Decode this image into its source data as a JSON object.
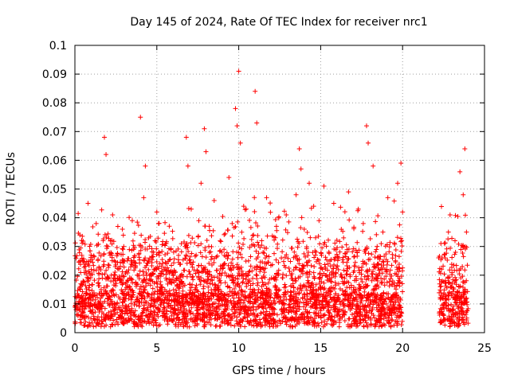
{
  "chart_data": {
    "type": "scatter",
    "title": "Day 145 of 2024, Rate Of TEC Index for receiver nrc1",
    "xlabel": "GPS time / hours",
    "ylabel": "ROTI / TECUs",
    "xlim": [
      0,
      25
    ],
    "ylim": [
      0,
      0.1
    ],
    "xticks": [
      0,
      5,
      10,
      15,
      20,
      25
    ],
    "xtick_labels": [
      "0",
      "5",
      "10",
      "15",
      "20",
      "25"
    ],
    "yticks": [
      0,
      0.01,
      0.02,
      0.03,
      0.04,
      0.05,
      0.06,
      0.07,
      0.08,
      0.09,
      0.1
    ],
    "ytick_labels": [
      "0",
      "0.01",
      "0.02",
      "0.03",
      "0.04",
      "0.05",
      "0.06",
      "0.07",
      "0.08",
      "0.09",
      "0.1"
    ],
    "grid": true,
    "marker": "plus",
    "color": "#ff0000",
    "series": [
      {
        "x": [
          0.1,
          0.3,
          0.5,
          0.8,
          1.0,
          1.3,
          1.6,
          1.8,
          1.9,
          2.0,
          2.3,
          2.6,
          2.9,
          3.2,
          3.5,
          3.8,
          4.0,
          4.2,
          4.3,
          4.5,
          4.8,
          5.0,
          5.3,
          5.6,
          5.9,
          6.2,
          6.5,
          6.8,
          6.9,
          7.1,
          7.4,
          7.7,
          7.9,
          8.0,
          8.2,
          8.5,
          8.8,
          9.1,
          9.4,
          9.6,
          9.8,
          9.9,
          10.0,
          10.1,
          10.3,
          10.6,
          10.9,
          11.0,
          11.1,
          11.4,
          11.7,
          12.0,
          12.3,
          12.6,
          12.9,
          13.2,
          13.5,
          13.7,
          13.8,
          14.0,
          14.3,
          14.6,
          14.9,
          15.2,
          15.5,
          15.8,
          16.1,
          16.4,
          16.7,
          17.0,
          17.3,
          17.6,
          17.8,
          17.9,
          18.2,
          18.5,
          18.8,
          19.1,
          19.4,
          19.7,
          19.9,
          20.0,
          22.3,
          22.6,
          22.9,
          23.2,
          23.5,
          23.7,
          23.8,
          23.9
        ],
        "y": [
          0.012,
          0.034,
          0.018,
          0.045,
          0.022,
          0.038,
          0.015,
          0.068,
          0.062,
          0.03,
          0.041,
          0.019,
          0.036,
          0.025,
          0.039,
          0.02,
          0.075,
          0.047,
          0.058,
          0.033,
          0.028,
          0.042,
          0.016,
          0.024,
          0.011,
          0.019,
          0.031,
          0.068,
          0.058,
          0.043,
          0.027,
          0.052,
          0.071,
          0.063,
          0.037,
          0.046,
          0.018,
          0.029,
          0.054,
          0.038,
          0.078,
          0.072,
          0.091,
          0.066,
          0.044,
          0.025,
          0.034,
          0.084,
          0.073,
          0.032,
          0.047,
          0.019,
          0.037,
          0.026,
          0.041,
          0.014,
          0.048,
          0.064,
          0.057,
          0.036,
          0.052,
          0.023,
          0.039,
          0.051,
          0.028,
          0.045,
          0.017,
          0.033,
          0.049,
          0.021,
          0.043,
          0.038,
          0.072,
          0.066,
          0.058,
          0.024,
          0.035,
          0.047,
          0.018,
          0.052,
          0.059,
          0.042,
          0.016,
          0.026,
          0.041,
          0.032,
          0.056,
          0.048,
          0.064,
          0.035
        ]
      }
    ]
  }
}
